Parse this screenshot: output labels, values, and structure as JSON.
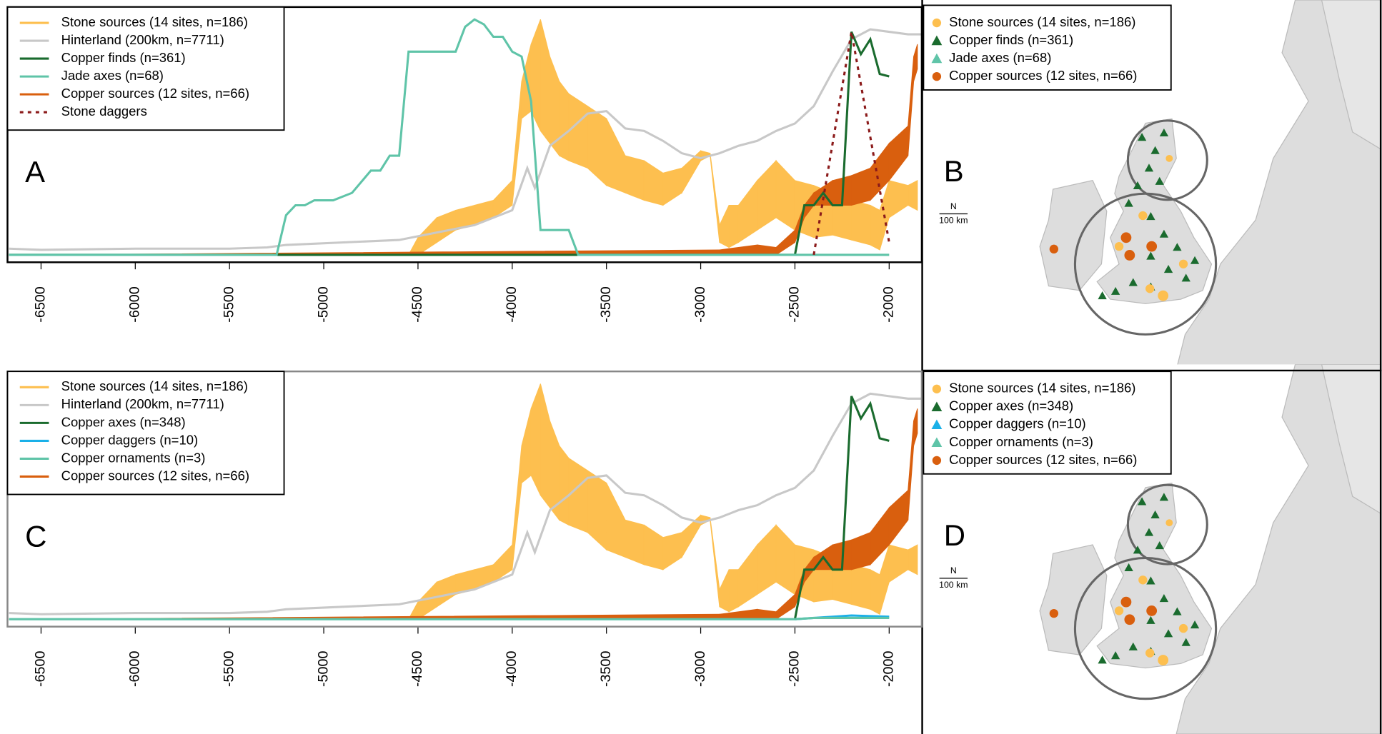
{
  "chart_data": [
    {
      "type": "line",
      "label": "A",
      "xlim": [
        -6678,
        -1827
      ],
      "ylim": [
        -0.03,
        1
      ],
      "xticks": [
        -6500,
        -6000,
        -5500,
        -5000,
        -4500,
        -4000,
        -3500,
        -3000,
        -2500,
        -2000
      ],
      "series": [
        {
          "name": "Stone sources (14 sites, n=186)",
          "color": "#fdbf4f",
          "x": [
            -4550,
            -4500,
            -4400,
            -4300,
            -4200,
            -4100,
            -4000,
            -3950,
            -3900,
            -3850,
            -3800,
            -3750,
            -3700,
            -3600,
            -3500,
            -3400,
            -3300,
            -3200,
            -3100,
            -3000,
            -2950,
            -2900,
            -2850,
            -2800,
            -2700,
            -2600,
            -2500,
            -2400,
            -2300,
            -2200,
            -2100,
            -2050,
            -2000,
            -1900,
            -1850
          ],
          "low": [
            0,
            0,
            0.05,
            0.1,
            0.12,
            0.15,
            0.2,
            0.55,
            0.58,
            0.5,
            0.45,
            0.4,
            0.38,
            0.35,
            0.28,
            0.25,
            0.22,
            0.2,
            0.25,
            0.38,
            0.4,
            0.05,
            0.03,
            0.05,
            0.1,
            0.15,
            0.1,
            0.07,
            0.08,
            0.06,
            0.04,
            0.02,
            0.15,
            0.2,
            0.18
          ],
          "high": [
            0,
            0.07,
            0.15,
            0.18,
            0.2,
            0.22,
            0.3,
            0.7,
            0.85,
            0.95,
            0.8,
            0.7,
            0.65,
            0.6,
            0.55,
            0.4,
            0.38,
            0.33,
            0.35,
            0.42,
            0.41,
            0.12,
            0.2,
            0.2,
            0.3,
            0.38,
            0.3,
            0.28,
            0.25,
            0.22,
            0.2,
            0.18,
            0.3,
            0.28,
            0.3
          ]
        },
        {
          "name": "Hinterland (200km, n=7711)",
          "color": "#c8c8c8",
          "x": [
            -6670,
            -6500,
            -6000,
            -5500,
            -5300,
            -5200,
            -4600,
            -4400,
            -4200,
            -4000,
            -3920,
            -3880,
            -3800,
            -3700,
            -3600,
            -3500,
            -3400,
            -3300,
            -3200,
            -3100,
            -3000,
            -2900,
            -2800,
            -2700,
            -2600,
            -2500,
            -2400,
            -2300,
            -2200,
            -2100,
            -2000,
            -1900,
            -1830
          ],
          "values": [
            0.025,
            0.02,
            0.025,
            0.025,
            0.03,
            0.04,
            0.06,
            0.09,
            0.12,
            0.18,
            0.35,
            0.27,
            0.44,
            0.5,
            0.57,
            0.58,
            0.51,
            0.5,
            0.46,
            0.41,
            0.39,
            0.41,
            0.44,
            0.46,
            0.5,
            0.53,
            0.6,
            0.74,
            0.87,
            0.91,
            0.9,
            0.89,
            0.89
          ]
        },
        {
          "name": "Copper finds (n=361)",
          "color": "#1a6b2e",
          "x": [
            -6670,
            -2500,
            -2450,
            -2400,
            -2350,
            -2300,
            -2250,
            -2200,
            -2150,
            -2100,
            -2050,
            -2000
          ],
          "values": [
            0,
            0,
            0.2,
            0.2,
            0.25,
            0.2,
            0.2,
            0.9,
            0.81,
            0.87,
            0.73,
            0.72
          ]
        },
        {
          "name": "Jade axes (n=68)",
          "color": "#5fc4a8",
          "x": [
            -6670,
            -5250,
            -5200,
            -5150,
            -5100,
            -5050,
            -4950,
            -4850,
            -4750,
            -4700,
            -4650,
            -4600,
            -4550,
            -4300,
            -4250,
            -4200,
            -4150,
            -4100,
            -4050,
            -4000,
            -3950,
            -3900,
            -3850,
            -3700,
            -3650,
            -2000
          ],
          "values": [
            0,
            0,
            0.16,
            0.2,
            0.2,
            0.22,
            0.22,
            0.25,
            0.34,
            0.34,
            0.4,
            0.4,
            0.82,
            0.82,
            0.92,
            0.95,
            0.93,
            0.88,
            0.88,
            0.82,
            0.8,
            0.62,
            0.1,
            0.1,
            0,
            0
          ]
        },
        {
          "name": "Copper sources (12 sites, n=66)",
          "color": "#d95f0e",
          "x": [
            -6670,
            -6500,
            -2900,
            -2700,
            -2600,
            -2500,
            -2450,
            -2400,
            -2300,
            -2200,
            -2100,
            -2000,
            -1900,
            -1870,
            -1850
          ],
          "low": [
            0,
            0,
            0,
            0,
            0,
            0.05,
            0.15,
            0.2,
            0.2,
            0.2,
            0.22,
            0.3,
            0.4,
            0.7,
            0.75
          ],
          "high": [
            0,
            0,
            0.02,
            0.04,
            0.03,
            0.1,
            0.2,
            0.25,
            0.3,
            0.32,
            0.35,
            0.45,
            0.52,
            0.8,
            0.85
          ]
        },
        {
          "name": "Stone daggers",
          "color": "#8b1a1a",
          "dash": true,
          "x": [
            -2400,
            -2200,
            -2000
          ],
          "values": [
            0,
            0.9,
            0.05
          ]
        }
      ]
    },
    {
      "type": "map",
      "label": "B",
      "scale_label": "100 km",
      "north": "N",
      "series": [
        {
          "name": "Stone sources (14 sites, n=186)",
          "color": "#fdbf4f",
          "shape": "circle"
        },
        {
          "name": "Copper finds (n=361)",
          "color": "#1a6b2e",
          "shape": "triangle"
        },
        {
          "name": "Jade axes (n=68)",
          "color": "#5fc4a8",
          "shape": "triangle"
        },
        {
          "name": "Copper sources (12 sites, n=66)",
          "color": "#d95f0e",
          "shape": "circle"
        }
      ]
    },
    {
      "type": "line",
      "label": "C",
      "xlim": [
        -6678,
        -1827
      ],
      "ylim": [
        -0.03,
        1
      ],
      "xticks": [
        -6500,
        -6000,
        -5500,
        -5000,
        -4500,
        -4000,
        -3500,
        -3000,
        -2500,
        -2000
      ],
      "series": [
        {
          "name": "Stone sources (14 sites, n=186)",
          "color": "#fdbf4f",
          "x": [
            -4550,
            -4500,
            -4400,
            -4300,
            -4200,
            -4100,
            -4000,
            -3950,
            -3900,
            -3850,
            -3800,
            -3750,
            -3700,
            -3600,
            -3500,
            -3400,
            -3300,
            -3200,
            -3100,
            -3000,
            -2950,
            -2900,
            -2850,
            -2800,
            -2700,
            -2600,
            -2500,
            -2400,
            -2300,
            -2200,
            -2100,
            -2050,
            -2000,
            -1900,
            -1850
          ],
          "low": [
            0,
            0,
            0.05,
            0.1,
            0.12,
            0.15,
            0.2,
            0.55,
            0.58,
            0.5,
            0.45,
            0.4,
            0.38,
            0.35,
            0.28,
            0.25,
            0.22,
            0.2,
            0.25,
            0.38,
            0.4,
            0.05,
            0.03,
            0.05,
            0.1,
            0.15,
            0.1,
            0.07,
            0.08,
            0.06,
            0.04,
            0.02,
            0.15,
            0.2,
            0.18
          ],
          "high": [
            0,
            0.07,
            0.15,
            0.18,
            0.2,
            0.22,
            0.3,
            0.7,
            0.85,
            0.95,
            0.8,
            0.7,
            0.65,
            0.6,
            0.55,
            0.4,
            0.38,
            0.33,
            0.35,
            0.42,
            0.41,
            0.12,
            0.2,
            0.2,
            0.3,
            0.38,
            0.3,
            0.28,
            0.25,
            0.22,
            0.2,
            0.18,
            0.3,
            0.28,
            0.3
          ]
        },
        {
          "name": "Hinterland (200km, n=7711)",
          "color": "#c8c8c8",
          "x": [
            -6670,
            -6500,
            -6000,
            -5500,
            -5300,
            -5200,
            -4600,
            -4400,
            -4200,
            -4000,
            -3920,
            -3880,
            -3800,
            -3700,
            -3600,
            -3500,
            -3400,
            -3300,
            -3200,
            -3100,
            -3000,
            -2900,
            -2800,
            -2700,
            -2600,
            -2500,
            -2400,
            -2300,
            -2200,
            -2100,
            -2000,
            -1900,
            -1830
          ],
          "values": [
            0.025,
            0.02,
            0.025,
            0.025,
            0.03,
            0.04,
            0.06,
            0.09,
            0.12,
            0.18,
            0.35,
            0.27,
            0.44,
            0.5,
            0.57,
            0.58,
            0.51,
            0.5,
            0.46,
            0.41,
            0.39,
            0.41,
            0.44,
            0.46,
            0.5,
            0.53,
            0.6,
            0.74,
            0.87,
            0.91,
            0.9,
            0.89,
            0.89
          ]
        },
        {
          "name": "Copper axes (n=348)",
          "color": "#1a6b2e",
          "x": [
            -2500,
            -2450,
            -2400,
            -2350,
            -2300,
            -2250,
            -2200,
            -2150,
            -2100,
            -2050,
            -2000
          ],
          "values": [
            0,
            0.2,
            0.2,
            0.25,
            0.2,
            0.2,
            0.9,
            0.81,
            0.87,
            0.73,
            0.72
          ]
        },
        {
          "name": "Copper daggers (n=10)",
          "color": "#1ab0e8",
          "x": [
            -2500,
            -2300,
            -2200,
            -2000
          ],
          "values": [
            0,
            0.01,
            0.015,
            0.01
          ]
        },
        {
          "name": "Copper ornaments (n=3)",
          "color": "#5fc4a8",
          "x": [
            -6670,
            -2500,
            -2400,
            -2000
          ],
          "values": [
            0,
            0,
            0.005,
            0.005
          ]
        },
        {
          "name": "Copper sources (12 sites, n=66)",
          "color": "#d95f0e",
          "x": [
            -6670,
            -6500,
            -2900,
            -2700,
            -2600,
            -2500,
            -2450,
            -2400,
            -2300,
            -2200,
            -2100,
            -2000,
            -1900,
            -1870,
            -1850
          ],
          "low": [
            0,
            0,
            0,
            0,
            0,
            0.05,
            0.15,
            0.2,
            0.2,
            0.2,
            0.22,
            0.3,
            0.4,
            0.7,
            0.75
          ],
          "high": [
            0,
            0,
            0.02,
            0.04,
            0.03,
            0.1,
            0.2,
            0.25,
            0.3,
            0.32,
            0.35,
            0.45,
            0.52,
            0.8,
            0.85
          ]
        }
      ]
    },
    {
      "type": "map",
      "label": "D",
      "scale_label": "100 km",
      "north": "N",
      "series": [
        {
          "name": "Stone sources (14 sites, n=186)",
          "color": "#fdbf4f",
          "shape": "circle"
        },
        {
          "name": "Copper axes (n=348)",
          "color": "#1a6b2e",
          "shape": "triangle"
        },
        {
          "name": "Copper daggers (n=10)",
          "color": "#1ab0e8",
          "shape": "triangle"
        },
        {
          "name": "Copper ornaments (n=3)",
          "color": "#5fc4a8",
          "shape": "triangle"
        },
        {
          "name": "Copper sources (12 sites, n=66)",
          "color": "#d95f0e",
          "shape": "circle"
        }
      ]
    }
  ]
}
